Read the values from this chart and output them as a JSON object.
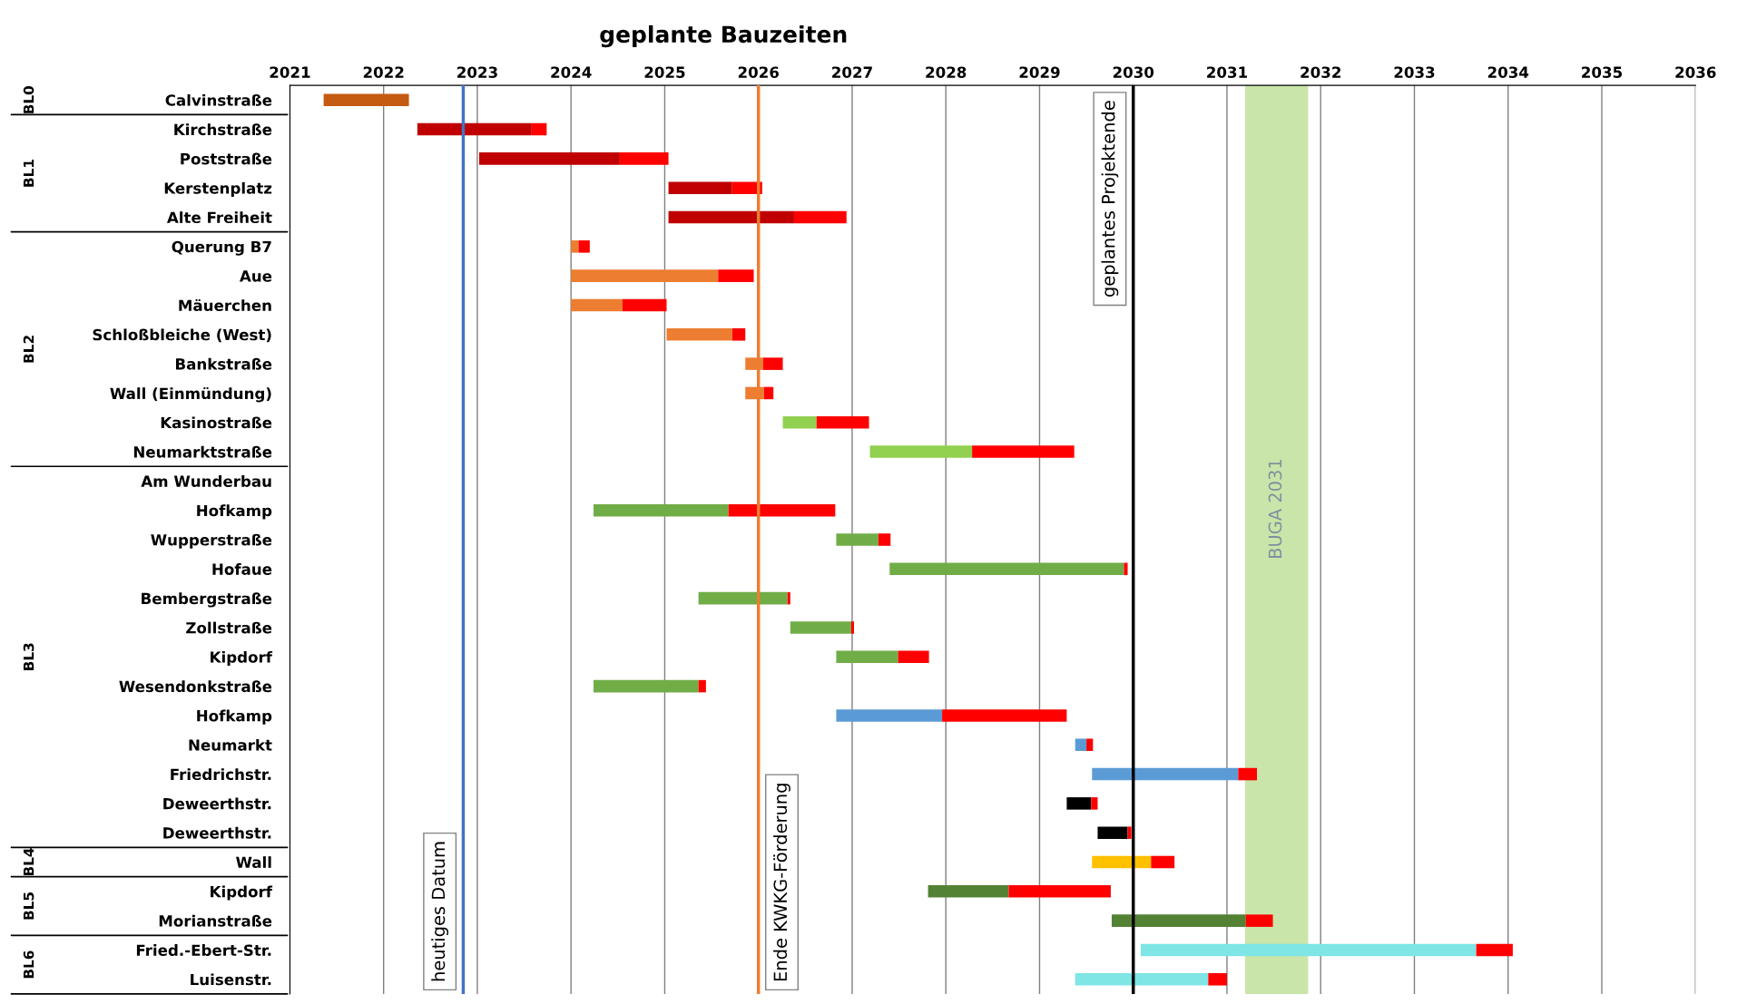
{
  "chart_data": {
    "type": "bar",
    "orientation": "horizontal",
    "title": "geplante Bauzeiten",
    "categories": [
      "Calvinstraße",
      "Kirchstraße",
      "Poststraße",
      "Kerstenplatz",
      "Alte Freiheit",
      "Querung B7",
      "Aue",
      "Mäuerchen",
      "Schloßbleiche (West)",
      "Bankstraße",
      "Wall (Einmündung)",
      "Kasinostraße",
      "Neumarktstraße",
      "Am Wunderbau",
      "Hofkamp",
      "Wupperstraße",
      "Hofaue",
      "Bembergstraße",
      "Zollstraße",
      "Kipdorf",
      "Wesendonkstraße",
      "Hofkamp",
      "Neumarkt",
      "Friedrichstr.",
      "Deweerthstr.",
      "Deweerthstr.",
      "Wall",
      "Kipdorf",
      "Morianstraße",
      "Fried.-Ebert-Str.",
      "Luisenstr."
    ],
    "series": [
      {
        "colors": [
          "#c55a11",
          "#c00000",
          "#c00000",
          "#c00000",
          "#c00000",
          "#ed7d31",
          "#ed7d31",
          "#ed7d31",
          "#ed7d31",
          "#ed7d31",
          "#ed7d31",
          "#92d050",
          "#92d050",
          null,
          "#70ad47",
          "#70ad47",
          "#70ad47",
          "#70ad47",
          "#70ad47",
          "#70ad47",
          "#70ad47",
          "#5b9bd5",
          "#5b9bd5",
          "#5b9bd5",
          "#000000",
          "#000000",
          "#ffc000",
          "#548235",
          "#548235",
          "#7fe5e5",
          "#7fe5e5"
        ],
        "base": [
          2021.36,
          2022.36,
          2023.02,
          2025.04,
          2025.04,
          2024.0,
          2024.0,
          2024.0,
          2025.02,
          2025.86,
          2025.86,
          2026.26,
          2027.19,
          null,
          2024.24,
          2026.83,
          2027.4,
          2025.36,
          2026.34,
          2026.83,
          2024.24,
          2026.83,
          2029.38,
          2029.56,
          2029.29,
          2029.62,
          2029.56,
          2027.81,
          2029.77,
          2030.08,
          2029.38
        ],
        "values": [
          0.91,
          1.22,
          1.5,
          0.68,
          1.34,
          0.08,
          1.57,
          0.55,
          0.7,
          0.19,
          0.2,
          0.36,
          1.09,
          null,
          1.44,
          0.45,
          2.5,
          0.95,
          0.65,
          0.66,
          1.12,
          1.13,
          0.12,
          1.56,
          0.26,
          0.32,
          0.63,
          0.86,
          1.43,
          3.58,
          1.42
        ]
      },
      {
        "color": "#ff0000",
        "base": [
          null,
          2023.58,
          2024.52,
          2025.72,
          2026.38,
          2024.08,
          2025.57,
          2024.55,
          2025.72,
          2026.05,
          2026.06,
          2026.62,
          2028.28,
          null,
          2025.68,
          2027.28,
          2029.9,
          2026.31,
          2026.99,
          2027.49,
          2025.36,
          2027.96,
          2029.5,
          2031.12,
          2029.55,
          2029.94,
          2030.19,
          2028.67,
          2031.2,
          2033.66,
          2030.8
        ],
        "values": [
          null,
          0.16,
          0.52,
          0.32,
          0.56,
          0.12,
          0.38,
          0.47,
          0.14,
          0.21,
          0.1,
          0.56,
          1.09,
          null,
          1.14,
          0.13,
          0.04,
          0.03,
          0.03,
          0.33,
          0.08,
          1.33,
          0.07,
          0.2,
          0.07,
          0.04,
          0.25,
          1.09,
          0.29,
          0.39,
          0.2
        ]
      }
    ],
    "xlim": [
      2021,
      2036
    ],
    "xticks": [
      2021,
      2022,
      2023,
      2024,
      2025,
      2026,
      2027,
      2028,
      2029,
      2030,
      2031,
      2032,
      2033,
      2034,
      2035,
      2036
    ],
    "grid": "x",
    "ref_lines": [
      {
        "axis": "x",
        "value": 2022.85,
        "label": "heutiges Datum",
        "color": "#4472c4"
      },
      {
        "axis": "x",
        "value": 2026.0,
        "label": "Ende KWKG-Förderung",
        "color": "#ed7d31"
      },
      {
        "axis": "x",
        "value": 2030.0,
        "label": "geplantes Projektende",
        "color": "#000000"
      }
    ],
    "bands": [
      {
        "axis": "x",
        "from": 2031.2,
        "to": 2031.86,
        "label": "BUGA 2031",
        "color": "#c5e3a0"
      }
    ],
    "annotations": [
      "BL0",
      "BL1",
      "BL2",
      "BL3",
      "BL4",
      "BL5",
      "BL6"
    ]
  }
}
